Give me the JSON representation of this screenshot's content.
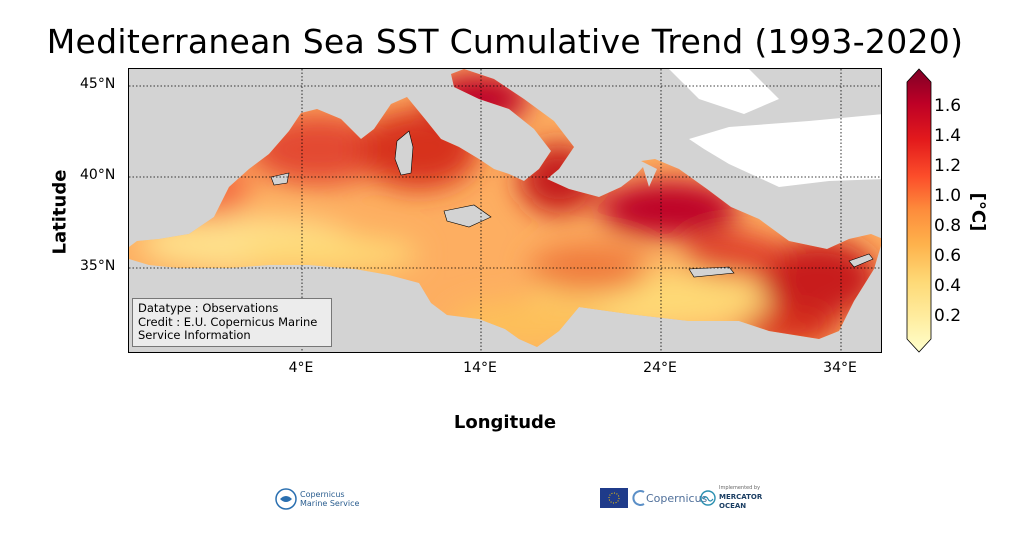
{
  "title": "Mediterranean Sea SST Cumulative Trend (1993-2020)",
  "map": {
    "xlabel": "Longitude",
    "ylabel": "Latitude",
    "lat_ticks": [
      "45°N",
      "40°N",
      "35°N"
    ],
    "lon_ticks": [
      "4°E",
      "14°E",
      "24°E",
      "34°E"
    ],
    "land_color": "#d3d3d3",
    "grid": "dotted"
  },
  "infobox": {
    "line1": "Datatype : Observations",
    "line2": "Credit : E.U. Copernicus Marine",
    "line3": "Service Information"
  },
  "colorbar": {
    "unit": "[°C]",
    "ticks": [
      "1.6",
      "1.4",
      "1.2",
      "1.0",
      "0.8",
      "0.6",
      "0.4",
      "0.2"
    ],
    "colormap": [
      "#ffffcc",
      "#ffeda0",
      "#fed976",
      "#feb24c",
      "#fd8d3c",
      "#fc4e2a",
      "#e31a1c",
      "#bd0026",
      "#800026"
    ]
  },
  "logos": {
    "cmems_line1": "Copernicus",
    "cmems_line2": "Marine Service",
    "copernicus": "Copernicus",
    "implemented_by": "Implemented by",
    "mercator_line1": "MERCATOR",
    "mercator_line2": "OCEAN"
  }
}
